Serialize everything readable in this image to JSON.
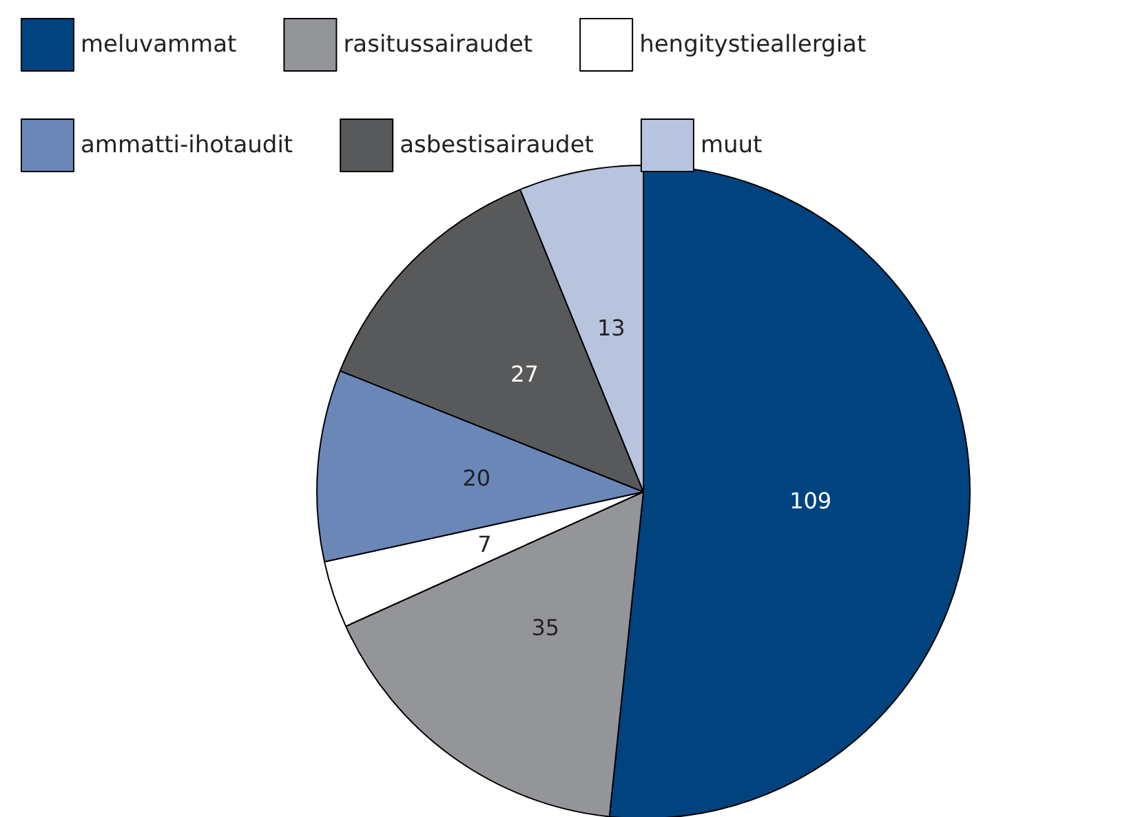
{
  "chart_data": {
    "type": "pie",
    "categories": [
      "meluvammat",
      "rasitussairaudet",
      "hengitystieallergiat",
      "ammatti-ihotaudit",
      "asbestisairaudet",
      "muut"
    ],
    "values": [
      109,
      35,
      7,
      20,
      27,
      13
    ],
    "colors": [
      "#00437f",
      "#939598",
      "#ffffff",
      "#6a87b8",
      "#58595b",
      "#b8c4de"
    ],
    "data_labels": true,
    "legend": "top"
  }
}
